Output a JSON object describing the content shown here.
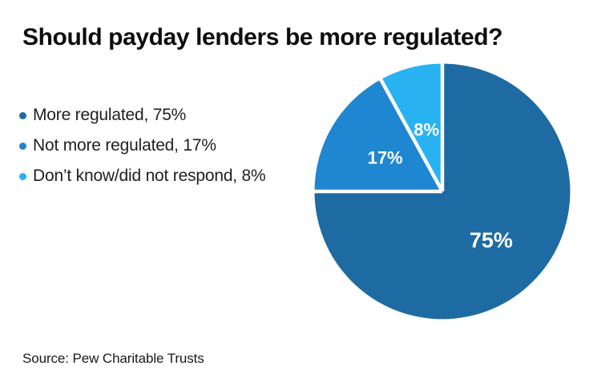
{
  "chart_data": {
    "type": "pie",
    "title": "Should payday lenders be more regulated?",
    "source": "Source: Pew Charitable Trusts",
    "start_angle_deg": 0,
    "direction": "clockwise",
    "legend_position": "left",
    "separator_color": "#ffffff",
    "label_color": "#ffffff",
    "background_color": "#ffffff",
    "slices": [
      {
        "name": "More regulated",
        "value": 75,
        "pct_label": "75%",
        "color": "#1e6ba3",
        "legend_label": "More regulated, 75%"
      },
      {
        "name": "Not more regulated",
        "value": 17,
        "pct_label": "17%",
        "color": "#1f86d1",
        "legend_label": "Not more regulated, 17%"
      },
      {
        "name": "Don’t know/did not respond",
        "value": 8,
        "pct_label": "8%",
        "color": "#29b2f2",
        "legend_label": "Don’t know/did not respond, 8%"
      }
    ]
  }
}
